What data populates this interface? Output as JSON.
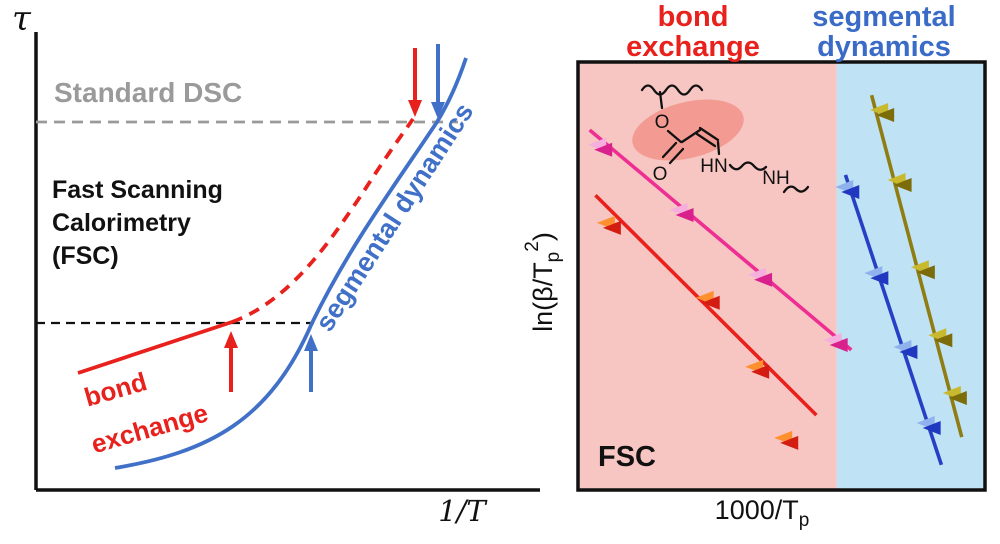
{
  "left_panel": {
    "y_axis_label": "τ",
    "x_axis_label": "1/T",
    "standard_dsc_label": "Standard DSC",
    "fsc_lines": [
      "Fast Scanning",
      "Calorimetry",
      "(FSC)"
    ],
    "bond_exchange_lines": [
      "bond",
      "exchange"
    ],
    "segmental_label": "segmental  dynamics",
    "colors": {
      "red": "#e8211d",
      "blue": "#4070c8",
      "gray": "#9a9a9a",
      "black": "#111111"
    }
  },
  "right_panel": {
    "title_bond": [
      "bond",
      "exchange"
    ],
    "title_segmental": [
      "segmental",
      "dynamics"
    ],
    "fsc_label": "FSC",
    "ylabel_parts": {
      "pre": "ln(β/T",
      "sub": "p",
      "sup": "2",
      "post": ")"
    },
    "xlabel_parts": {
      "pre": "1000/T",
      "sub": "p"
    },
    "structure_labels": {
      "o_ester": "O",
      "o_carbonyl": "O",
      "hn": "HN",
      "nh": "NH"
    },
    "colors": {
      "pink_bg": "#f7c6c2",
      "blue_bg": "#bfe2f4",
      "highlight": "#f2968e",
      "title_red": "#e8211d",
      "title_blue": "#3a6bc6"
    }
  },
  "chart_data": {
    "type": "scatter",
    "title": "",
    "xlabel": "1000/T_p",
    "ylabel": "ln(β/T_p^2)",
    "xlim": [
      2.2,
      3.6
    ],
    "ylim": [
      -12,
      -4
    ],
    "grid": false,
    "tick_labels_visible": false,
    "annotations": [
      "FSC",
      "bond exchange",
      "segmental dynamics"
    ],
    "regions": [
      {
        "label": "bond exchange",
        "color": "#f7c6c2",
        "x_range": [
          2.2,
          3.09
        ]
      },
      {
        "label": "segmental dynamics",
        "color": "#bfe2f4",
        "x_range": [
          3.09,
          3.6
        ]
      }
    ],
    "series": [
      {
        "name": "bond exchange (magenta)",
        "line_color": "#ee2e93",
        "marker_dark": "#d9218d",
        "marker_light": "#f5aede",
        "line": {
          "x": [
            2.24,
            3.14
          ],
          "y": [
            -5.27,
            -9.38
          ]
        },
        "points": [
          [
            2.29,
            -5.64
          ],
          [
            2.57,
            -6.86
          ],
          [
            2.84,
            -8.07
          ],
          [
            3.1,
            -9.29
          ]
        ]
      },
      {
        "name": "bond exchange (red)",
        "line_color": "#e8211d",
        "marker_dark": "#d31d10",
        "marker_light": "#ff9030",
        "line": {
          "x": [
            2.26,
            3.02
          ],
          "y": [
            -6.49,
            -10.6
          ]
        },
        "points": [
          [
            2.32,
            -7.1
          ],
          [
            2.66,
            -8.5
          ],
          [
            2.83,
            -9.79
          ],
          [
            2.93,
            -11.12
          ]
        ]
      },
      {
        "name": "segmental dynamics (blue)",
        "line_color": "#2540c4",
        "marker_dark": "#2038c0",
        "marker_light": "#8fb2ef",
        "line": {
          "x": [
            3.12,
            3.45
          ],
          "y": [
            -6.11,
            -11.53
          ]
        },
        "points": [
          [
            3.14,
            -6.43
          ],
          [
            3.24,
            -8.04
          ],
          [
            3.34,
            -9.42
          ],
          [
            3.42,
            -10.84
          ]
        ]
      },
      {
        "name": "segmental dynamics (olive)",
        "line_color": "#8f7d14",
        "marker_dark": "#7d6d0a",
        "marker_light": "#c9b92e",
        "line": {
          "x": [
            3.21,
            3.52
          ],
          "y": [
            -4.62,
            -11.01
          ]
        },
        "points": [
          [
            3.26,
            -4.99
          ],
          [
            3.32,
            -6.3
          ],
          [
            3.4,
            -7.93
          ],
          [
            3.46,
            -9.2
          ],
          [
            3.51,
            -10.28
          ]
        ]
      }
    ]
  }
}
